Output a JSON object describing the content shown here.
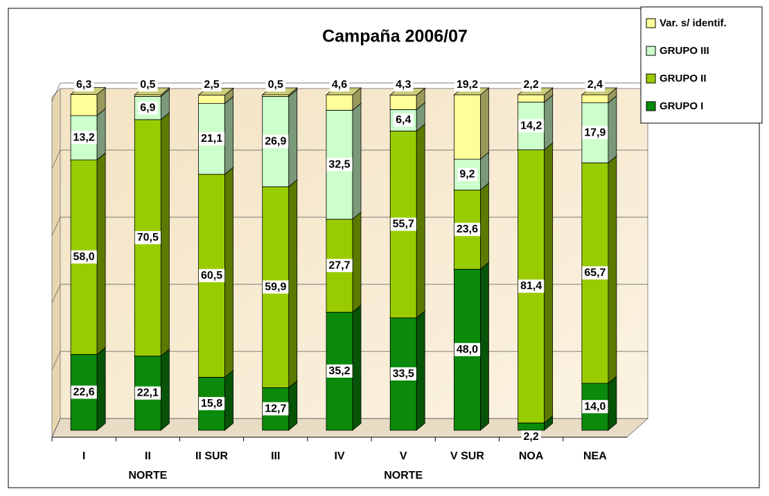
{
  "chart_data": {
    "type": "bar3d_stacked",
    "title": "Campaña 2006/07",
    "categories": [
      "I",
      "II\nNORTE",
      "II SUR",
      "III",
      "IV",
      "V\nNORTE",
      "V SUR",
      "NOA",
      "NEA"
    ],
    "series": [
      {
        "name": "GRUPO I",
        "color": "#0b8a0b",
        "values": [
          22.6,
          22.1,
          15.8,
          12.7,
          35.2,
          33.5,
          48.0,
          2.2,
          14.0
        ],
        "value_labels": [
          "22,6",
          "22,1",
          "15,8",
          "12,7",
          "35,2",
          "33,5",
          "48,0",
          "2,2",
          "14,0"
        ]
      },
      {
        "name": "GRUPO II",
        "color": "#99cc00",
        "values": [
          58.0,
          70.5,
          60.5,
          59.9,
          27.7,
          55.7,
          23.6,
          81.4,
          65.7
        ],
        "value_labels": [
          "58,0",
          "70,5",
          "60,5",
          "59,9",
          "27,7",
          "55,7",
          "23,6",
          "81,4",
          "65,7"
        ]
      },
      {
        "name": "GRUPO III",
        "color": "#ccffcc",
        "values": [
          13.2,
          6.9,
          21.1,
          26.9,
          32.5,
          6.4,
          9.2,
          14.2,
          17.9
        ],
        "value_labels": [
          "13,2",
          "6,9",
          "21,1",
          "26,9",
          "32,5",
          "6,4",
          "9,2",
          "14,2",
          "17,9"
        ]
      },
      {
        "name": "Var. s/ identif.",
        "color": "#ffff99",
        "values": [
          6.3,
          0.5,
          2.5,
          0.5,
          4.6,
          4.3,
          19.2,
          2.2,
          2.4
        ],
        "value_labels": [
          "6,3",
          "0,5",
          "2,5",
          "0,5",
          "4,6",
          "4,3",
          "19,2",
          "2,2",
          "2,4"
        ]
      }
    ],
    "ylim": [
      0,
      100
    ],
    "yticks": [
      0,
      20,
      40,
      60,
      80,
      100
    ],
    "grid": true,
    "legend": "top-right"
  }
}
